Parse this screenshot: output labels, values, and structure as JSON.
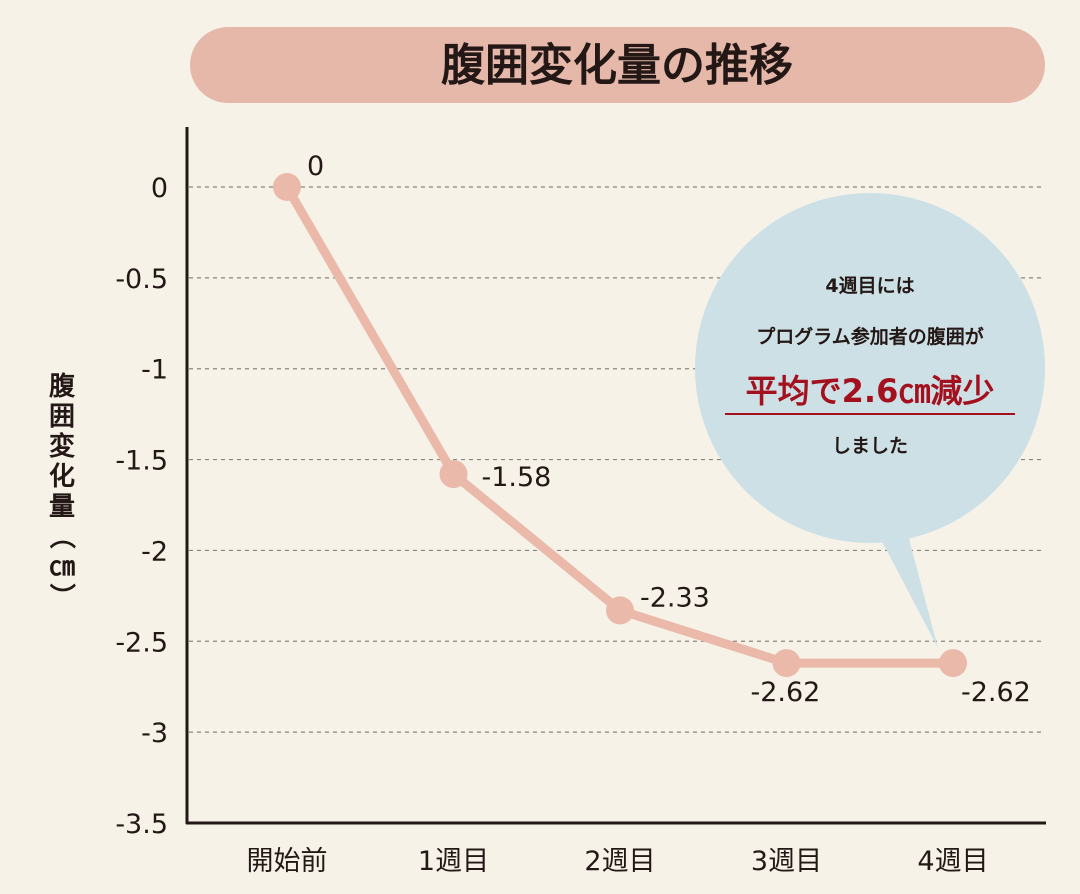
{
  "chart_data": {
    "type": "line",
    "title": "腹囲変化量の推移",
    "ylabel": "腹囲変化量（㎝）",
    "xlabel": "",
    "categories": [
      "開始前",
      "1週目",
      "2週目",
      "3週目",
      "4週目"
    ],
    "series": [
      {
        "values": [
          0,
          -1.58,
          -2.33,
          -2.62,
          -2.62
        ]
      }
    ],
    "data_labels": [
      "0",
      "-1.58",
      "-2.33",
      "-2.62",
      "-2.62"
    ],
    "ylim": [
      -3.5,
      0
    ],
    "yticks": [
      0,
      -0.5,
      -1,
      -1.5,
      -2,
      -2.5,
      -3,
      -3.5
    ],
    "ytick_labels": [
      "0",
      "-0.5",
      "-1",
      "-1.5",
      "-2",
      "-2.5",
      "-3",
      "-3.5"
    ],
    "grid": true,
    "annotation": {
      "line1": "4週目には",
      "line2": "プログラム参加者の腹囲が",
      "highlight": "平均で2.6㎝減少",
      "line4": "しました"
    },
    "colors": {
      "background": "#f6f2e8",
      "title_band": "#e6b8aa",
      "line": "#eab9a9",
      "callout": "#cde0e6",
      "highlight": "#a3111e",
      "text": "#231815"
    }
  }
}
